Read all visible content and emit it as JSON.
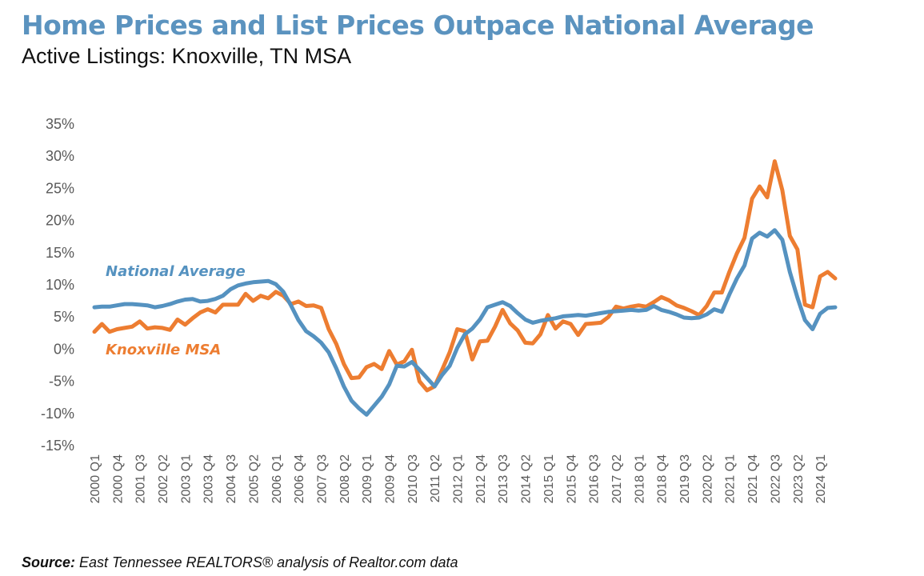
{
  "header": {
    "title": "Home Prices and List Prices Outpace National Average",
    "subtitle": "Active Listings: Knoxville, TN MSA"
  },
  "footer": {
    "source_label": "Source:",
    "source_text": " East Tennessee REALTORS® analysis of Realtor.com data"
  },
  "chart_data": {
    "type": "line",
    "title": "Home Prices and List Prices Outpace National Average",
    "subtitle": "Active Listings: Knoxville, TN MSA",
    "xlabel": "",
    "ylabel": "",
    "ylim": [
      -15,
      35
    ],
    "yticks": [
      35,
      30,
      25,
      20,
      15,
      10,
      5,
      0,
      -5,
      -10,
      -15
    ],
    "ytick_labels": [
      "35%",
      "30%",
      "25%",
      "20%",
      "15%",
      "10%",
      "5%",
      "0%",
      "-5%",
      "-10%",
      "-15%"
    ],
    "grid": false,
    "legend": "inline-labels-left",
    "x_start": "2000 Q1",
    "x_end": "2024 Q1",
    "x_label_every": 3,
    "xtick_labels": [
      "2000 Q1",
      "2000 Q4",
      "2001 Q3",
      "2002 Q2",
      "2003 Q1",
      "2003 Q4",
      "2004 Q3",
      "2005 Q2",
      "2006 Q1",
      "2006 Q4",
      "2007 Q3",
      "2008 Q2",
      "2009 Q1",
      "2009 Q4",
      "2010 Q3",
      "2011 Q2",
      "2012 Q1",
      "2012 Q4",
      "2013 Q3",
      "2014 Q2",
      "2015 Q1",
      "2015 Q4",
      "2016 Q3",
      "2017 Q2",
      "2018 Q1",
      "2018 Q4",
      "2019 Q3",
      "2020 Q2",
      "2021 Q1",
      "2021 Q4",
      "2022 Q3",
      "2023 Q2",
      "2024 Q1"
    ],
    "series": [
      {
        "name": "National Average",
        "color": "#5592C0",
        "values": [
          6.5,
          6.6,
          6.6,
          6.8,
          7.0,
          7.0,
          6.9,
          6.8,
          6.5,
          6.7,
          7.0,
          7.4,
          7.7,
          7.8,
          7.4,
          7.5,
          7.8,
          8.3,
          9.3,
          9.9,
          10.2,
          10.4,
          10.5,
          10.6,
          10.1,
          8.9,
          6.8,
          4.5,
          2.8,
          2.0,
          1.0,
          -0.5,
          -3.0,
          -5.8,
          -8.0,
          -9.2,
          -10.2,
          -8.8,
          -7.4,
          -5.5,
          -2.6,
          -2.7,
          -2.0,
          -3.2,
          -4.5,
          -5.8,
          -4.0,
          -2.6,
          0.2,
          2.3,
          3.2,
          4.6,
          6.5,
          6.9,
          7.3,
          6.7,
          5.6,
          4.6,
          4.1,
          4.4,
          4.6,
          4.8,
          5.1,
          5.2,
          5.3,
          5.2,
          5.4,
          5.6,
          5.8,
          5.9,
          6.0,
          6.1,
          6.0,
          6.1,
          6.7,
          6.1,
          5.8,
          5.4,
          4.9,
          4.8,
          4.9,
          5.4,
          6.2,
          5.8,
          8.5,
          11.0,
          13.0,
          17.2,
          18.1,
          17.5,
          18.5,
          17.0,
          12.0,
          8.0,
          4.5,
          3.1,
          5.5,
          6.4,
          6.5
        ]
      },
      {
        "name": "Knoxville MSA",
        "color": "#ED7D31",
        "values": [
          2.7,
          3.9,
          2.7,
          3.1,
          3.3,
          3.5,
          4.3,
          3.2,
          3.4,
          3.3,
          3.0,
          4.6,
          3.8,
          4.8,
          5.7,
          6.2,
          5.7,
          6.9,
          6.9,
          6.9,
          8.6,
          7.5,
          8.3,
          7.9,
          8.9,
          8.3,
          7.0,
          7.4,
          6.7,
          6.8,
          6.4,
          3.1,
          0.8,
          -2.3,
          -4.5,
          -4.4,
          -2.8,
          -2.3,
          -3.1,
          -0.3,
          -2.4,
          -1.9,
          -0.1,
          -5.0,
          -6.4,
          -5.8,
          -3.2,
          -0.5,
          3.1,
          2.8,
          -1.6,
          1.2,
          1.3,
          3.5,
          6.1,
          4.0,
          2.9,
          1.0,
          0.9,
          2.3,
          5.3,
          3.2,
          4.3,
          3.9,
          2.2,
          3.9,
          4.0,
          4.1,
          5.0,
          6.6,
          6.3,
          6.6,
          6.8,
          6.6,
          7.3,
          8.1,
          7.6,
          6.8,
          6.4,
          5.9,
          5.3,
          6.7,
          8.8,
          8.8,
          12.0,
          14.9,
          17.3,
          23.4,
          25.3,
          23.6,
          29.2,
          24.7,
          17.6,
          15.5,
          6.9,
          6.5,
          11.3,
          12.0,
          11.0
        ]
      }
    ],
    "annotations": [
      {
        "text": "National Average",
        "series": "National Average"
      },
      {
        "text": "Knoxville MSA",
        "series": "Knoxville MSA"
      }
    ]
  }
}
